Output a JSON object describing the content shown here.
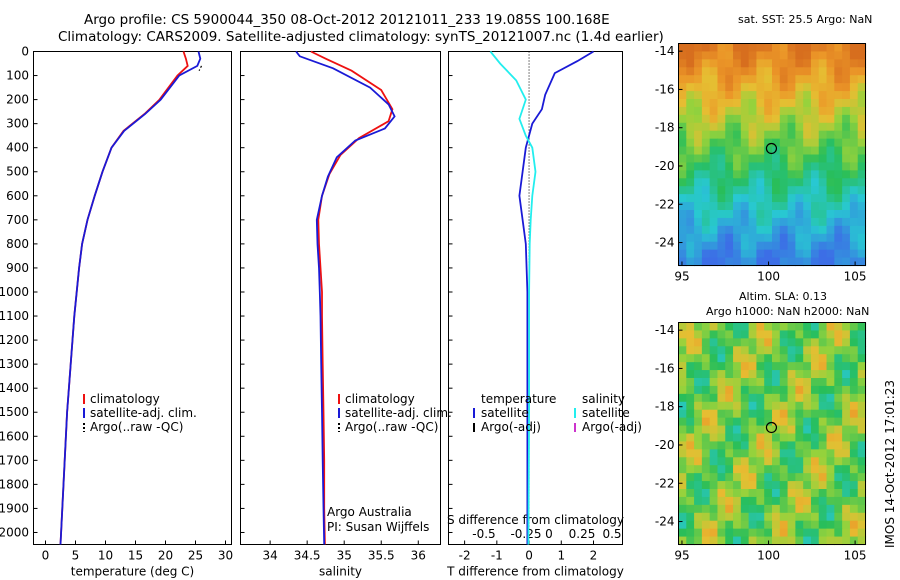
{
  "title": {
    "line1": "Argo profile: CS 5900044_350 08-Oct-2012 20121011_233 19.085S 100.168E",
    "line2": "Climatology: CARS2009. Satellite-adjusted climatology: synTS_20121007.nc (1.4d earlier)"
  },
  "colors": {
    "climatology": "#ee1111",
    "satellite": "#1a1ad6",
    "argo": "#000000",
    "sal_satellite": "#22eeee",
    "sal_argo": "#cc33cc"
  },
  "depth_axis": {
    "ticks": [
      0,
      100,
      200,
      300,
      400,
      500,
      600,
      700,
      800,
      900,
      1000,
      1100,
      1200,
      1300,
      1400,
      1500,
      1600,
      1700,
      1800,
      1900,
      2000
    ]
  },
  "chart_data": [
    {
      "type": "line",
      "id": "temperature",
      "xlabel": "temperature (deg C)",
      "xlim": [
        -2,
        31
      ],
      "ylim": [
        2050,
        0
      ],
      "xticks": [
        0,
        5,
        10,
        15,
        20,
        25,
        30
      ],
      "legend": [
        "climatology",
        "satellite-adj. clim.",
        "Argo(..raw -QC)"
      ],
      "series": [
        {
          "name": "climatology",
          "points": [
            [
              23,
              0
            ],
            [
              23.4,
              30
            ],
            [
              23.7,
              60
            ],
            [
              22,
              100
            ],
            [
              19,
              200
            ],
            [
              16.5,
              260
            ],
            [
              13,
              330
            ],
            [
              11,
              400
            ],
            [
              9.5,
              500
            ],
            [
              8.2,
              600
            ],
            [
              7,
              700
            ],
            [
              6.1,
              800
            ],
            [
              5.6,
              900
            ],
            [
              5.2,
              1000
            ],
            [
              4.8,
              1100
            ],
            [
              4.5,
              1200
            ],
            [
              4.2,
              1300
            ],
            [
              3.9,
              1400
            ],
            [
              3.6,
              1500
            ],
            [
              3.4,
              1600
            ],
            [
              3.2,
              1700
            ],
            [
              3.0,
              1800
            ],
            [
              2.8,
              1900
            ],
            [
              2.6,
              2000
            ],
            [
              2.5,
              2050
            ]
          ]
        },
        {
          "name": "satellite-adj. clim.",
          "points": [
            [
              25.5,
              0
            ],
            [
              25.8,
              30
            ],
            [
              25.3,
              60
            ],
            [
              22.3,
              100
            ],
            [
              19.2,
              200
            ],
            [
              16.6,
              260
            ],
            [
              13.1,
              330
            ],
            [
              11,
              400
            ],
            [
              9.5,
              500
            ],
            [
              8.2,
              600
            ],
            [
              7,
              700
            ],
            [
              6.1,
              800
            ],
            [
              5.6,
              900
            ],
            [
              5.2,
              1000
            ],
            [
              4.8,
              1100
            ],
            [
              4.5,
              1200
            ],
            [
              4.2,
              1300
            ],
            [
              3.9,
              1400
            ],
            [
              3.6,
              1500
            ],
            [
              3.4,
              1600
            ],
            [
              3.2,
              1700
            ],
            [
              3.0,
              1800
            ],
            [
              2.8,
              1900
            ],
            [
              2.6,
              2000
            ],
            [
              2.5,
              2050
            ]
          ]
        },
        {
          "name": "Argo(..raw -QC)",
          "points": [
            [
              26,
              60
            ],
            [
              25.6,
              80
            ]
          ]
        }
      ]
    },
    {
      "type": "line",
      "id": "salinity",
      "xlabel": "salinity",
      "xlim": [
        33.6,
        36.3
      ],
      "ylim": [
        2050,
        0
      ],
      "xticks": [
        34,
        34.5,
        35,
        35.5,
        36
      ],
      "legend": [
        "climatology",
        "satellite-adj. clim.",
        "Argo(..raw -QC)"
      ],
      "annotation": [
        "Argo Australia",
        "PI: Susan Wijffels"
      ],
      "series": [
        {
          "name": "climatology",
          "points": [
            [
              34.55,
              0
            ],
            [
              34.75,
              30
            ],
            [
              35.1,
              80
            ],
            [
              35.5,
              160
            ],
            [
              35.65,
              240
            ],
            [
              35.6,
              290
            ],
            [
              35.2,
              360
            ],
            [
              34.95,
              430
            ],
            [
              34.8,
              510
            ],
            [
              34.7,
              600
            ],
            [
              34.65,
              700
            ],
            [
              34.66,
              800
            ],
            [
              34.68,
              900
            ],
            [
              34.7,
              1000
            ],
            [
              34.7,
              1100
            ],
            [
              34.71,
              1300
            ],
            [
              34.72,
              1500
            ],
            [
              34.73,
              1700
            ],
            [
              34.73,
              1900
            ],
            [
              34.74,
              2050
            ]
          ]
        },
        {
          "name": "satellite-adj. clim.",
          "points": [
            [
              34.35,
              0
            ],
            [
              34.4,
              20
            ],
            [
              34.85,
              70
            ],
            [
              35.35,
              150
            ],
            [
              35.6,
              220
            ],
            [
              35.68,
              270
            ],
            [
              35.55,
              320
            ],
            [
              35.15,
              370
            ],
            [
              34.9,
              440
            ],
            [
              34.78,
              520
            ],
            [
              34.7,
              600
            ],
            [
              34.63,
              700
            ],
            [
              34.64,
              800
            ],
            [
              34.66,
              900
            ],
            [
              34.67,
              1000
            ],
            [
              34.68,
              1100
            ],
            [
              34.69,
              1300
            ],
            [
              34.7,
              1500
            ],
            [
              34.71,
              1700
            ],
            [
              34.72,
              1900
            ],
            [
              34.73,
              2050
            ]
          ]
        }
      ]
    },
    {
      "type": "line",
      "id": "difference",
      "xlabel": "T difference from climatology",
      "top_label": "S difference from climatology",
      "xlim": [
        -2.5,
        2.9
      ],
      "ylim": [
        2050,
        0
      ],
      "xticks": [
        -2,
        -1,
        0,
        1,
        2
      ],
      "top_ticks": [
        "-0.5",
        "-0.25",
        "0",
        "0.25",
        "0.5"
      ],
      "legend_headers": [
        "temperature",
        "salinity"
      ],
      "legend": [
        "satellite",
        "Argo(-adj)",
        "satellite",
        "Argo(-adj)"
      ],
      "series": [
        {
          "name": "temperature satellite",
          "points": [
            [
              2.0,
              0
            ],
            [
              1.5,
              40
            ],
            [
              0.8,
              90
            ],
            [
              0.5,
              180
            ],
            [
              0.4,
              240
            ],
            [
              0.1,
              300
            ],
            [
              -0.1,
              400
            ],
            [
              -0.2,
              500
            ],
            [
              -0.3,
              600
            ],
            [
              -0.2,
              700
            ],
            [
              -0.1,
              800
            ],
            [
              -0.05,
              1000
            ],
            [
              -0.05,
              1500
            ],
            [
              -0.05,
              2050
            ]
          ]
        },
        {
          "name": "salinity satellite",
          "points": [
            [
              -1.2,
              0
            ],
            [
              -0.9,
              50
            ],
            [
              -0.4,
              120
            ],
            [
              -0.1,
              200
            ],
            [
              -0.3,
              280
            ],
            [
              -0.1,
              350
            ],
            [
              0.1,
              400
            ],
            [
              0.2,
              500
            ],
            [
              0.1,
              600
            ],
            [
              0.05,
              700
            ],
            [
              0.02,
              800
            ],
            [
              0,
              1000
            ],
            [
              0,
              1500
            ],
            [
              -0.02,
              2050
            ]
          ]
        }
      ]
    },
    {
      "type": "heatmap",
      "id": "sst-map",
      "title": "sat. SST: 25.5 Argo: NaN",
      "xlim": [
        94.8,
        105.6
      ],
      "ylim": [
        -25.2,
        -13.6
      ],
      "xticks": [
        95,
        100,
        105
      ],
      "yticks": [
        -14,
        -16,
        -18,
        -20,
        -22,
        -24
      ],
      "marker": [
        100.168,
        -19.085
      ]
    },
    {
      "type": "heatmap",
      "id": "sla-map",
      "title": "Altim. SLA: 0.13",
      "subtitle": "Argo h1000: NaN h2000: NaN",
      "xlim": [
        94.8,
        105.6
      ],
      "ylim": [
        -25.2,
        -13.6
      ],
      "xticks": [
        95,
        100,
        105
      ],
      "yticks": [
        -14,
        -16,
        -18,
        -20,
        -22,
        -24
      ],
      "marker": [
        100.168,
        -19.085
      ]
    }
  ],
  "legend_labels": {
    "clim": "climatology",
    "sat": "satellite-adj. clim.",
    "argo": "Argo(..raw -QC)",
    "temp_header": "temperature",
    "sal_header": "salinity",
    "satellite": "satellite",
    "argo_adj": "Argo(-adj)"
  },
  "annotation": {
    "line1": "Argo Australia",
    "line2": "PI: Susan Wijffels"
  },
  "footer": "IMOS 14-Oct-2012 17:01:23"
}
